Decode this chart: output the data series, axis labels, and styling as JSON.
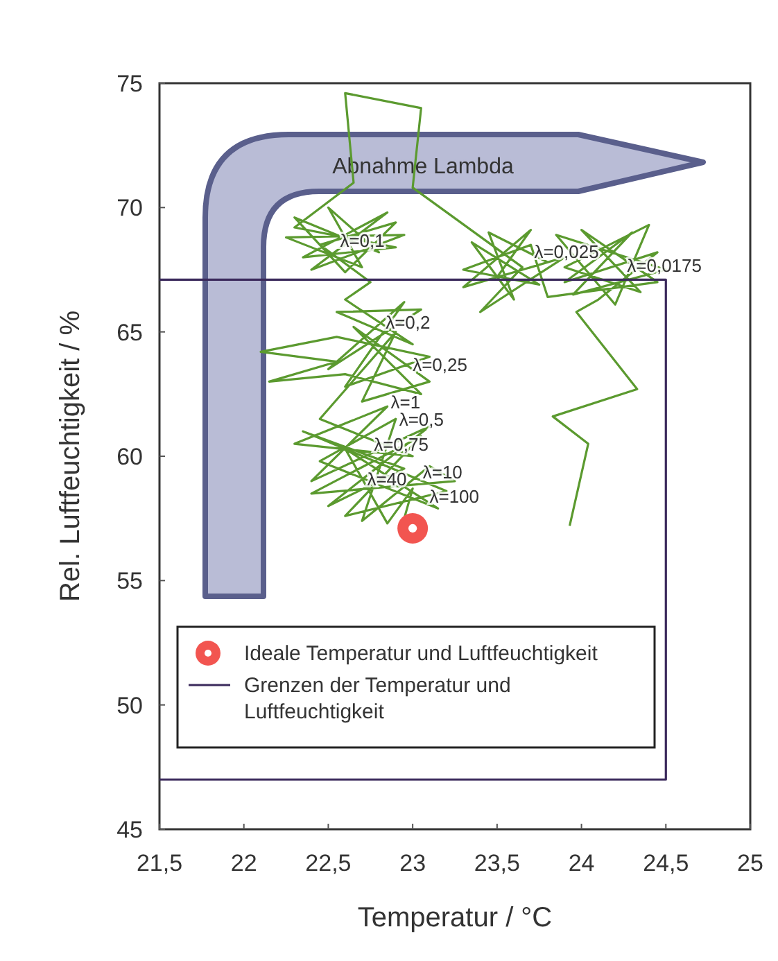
{
  "chart_data": {
    "type": "line",
    "xlabel": "Temperatur / °C",
    "ylabel": "Rel. Luftfeuchtigkeit / %",
    "xlim": [
      21.5,
      25
    ],
    "ylim": [
      45,
      75
    ],
    "xticks": [
      {
        "value": 21.5,
        "label": "21,5"
      },
      22,
      {
        "value": 22.5,
        "label": "22,5"
      },
      23,
      {
        "value": 23.5,
        "label": "23,5"
      },
      24,
      {
        "value": 24.5,
        "label": "24,5"
      },
      25
    ],
    "yticks": [
      45,
      50,
      55,
      60,
      65,
      70,
      75
    ],
    "grid": false,
    "legend": "bottom",
    "line_style": "solid",
    "marker": "none",
    "series": [
      {
        "color": "#5b9a2f",
        "x": [
          23.93,
          24.04,
          23.83,
          24.33,
          23.97,
          24.1,
          24.45,
          23.9,
          24.3,
          23.95,
          24.5,
          23.85,
          24.2,
          24.4,
          23.9,
          24.35,
          24.0,
          24.45,
          23.8,
          23.7,
          23.3,
          23.75,
          23.35,
          23.6,
          23.45,
          23.8,
          23.3,
          23.7,
          23.5,
          23.9,
          23.4,
          23.65,
          23.0,
          23.05,
          22.6,
          22.65,
          22.3,
          22.9,
          22.35,
          22.85,
          22.4,
          22.95,
          22.25,
          22.7,
          22.5,
          22.8,
          22.3,
          22.6,
          22.9,
          22.45,
          22.75,
          22.6,
          23.0,
          22.55,
          23.05,
          22.5,
          22.95,
          22.6,
          23.1,
          22.55,
          22.1,
          22.55,
          22.15,
          22.6,
          23.05,
          22.65,
          23.1,
          22.7,
          22.9,
          22.45,
          23.0,
          22.3,
          22.85,
          22.4,
          23.1,
          22.5,
          22.95,
          22.35,
          23.2,
          22.6,
          23.05,
          22.4,
          23.25,
          23.1,
          22.7,
          22.9,
          22.45,
          23.15,
          22.6,
          22.85,
          23.0,
          22.95
        ],
        "values": [
          57.2,
          60.5,
          61.6,
          62.7,
          65.8,
          66.3,
          68.2,
          67.0,
          69.0,
          66.5,
          67.5,
          68.9,
          66.1,
          69.3,
          67.6,
          66.6,
          69.1,
          67.0,
          66.4,
          68.5,
          67.5,
          66.9,
          68.6,
          66.3,
          69.0,
          67.8,
          66.8,
          69.1,
          67.2,
          68.0,
          65.8,
          67.6,
          70.8,
          74.0,
          74.6,
          71.0,
          69.2,
          68.4,
          68.0,
          69.8,
          67.5,
          68.9,
          68.8,
          67.6,
          70.0,
          68.2,
          69.6,
          67.4,
          69.4,
          68.5,
          67.0,
          66.3,
          64.5,
          65.8,
          65.9,
          63.5,
          66.2,
          62.8,
          64.0,
          64.8,
          64.2,
          63.8,
          63.0,
          63.3,
          62.5,
          65.2,
          63.0,
          62.2,
          65.0,
          61.5,
          60.0,
          60.5,
          62.0,
          59.0,
          61.2,
          58.0,
          59.5,
          61.0,
          58.6,
          57.6,
          60.8,
          58.5,
          59.0,
          59.6,
          57.4,
          61.5,
          59.8,
          57.9,
          60.3,
          57.3,
          58.7,
          57.5
        ]
      },
      {
        "type": "scatter",
        "name": "Ideale Temperatur und Luftfeuchtigkeit",
        "color": "#f25550",
        "marker": "circle",
        "x": [
          23.0
        ],
        "values": [
          57.1
        ]
      },
      {
        "type": "line",
        "name": "Grenzen der Temperatur und Luftfeuchtigkeit",
        "color": "#3b2a5c",
        "x": [
          21.5,
          24.5,
          24.5,
          21.5
        ],
        "values": [
          67.1,
          67.1,
          47.0,
          47.0
        ]
      }
    ],
    "annotations": [
      "Abnahme Lambda",
      {
        "text": "λ=0,1",
        "x": 22.57,
        "y": 68.7
      },
      {
        "text": "λ=0,025",
        "x": 23.72,
        "y": 68.25
      },
      {
        "text": "λ=0,0175",
        "x": 24.27,
        "y": 67.7
      },
      {
        "text": "λ=0,2",
        "x": 22.84,
        "y": 65.4
      },
      {
        "text": "λ=0,25",
        "x": 23.0,
        "y": 63.7
      },
      {
        "text": "λ=1",
        "x": 22.87,
        "y": 62.2
      },
      {
        "text": "λ=0,5",
        "x": 22.92,
        "y": 61.5
      },
      {
        "text": "λ=0,75",
        "x": 22.77,
        "y": 60.5
      },
      {
        "text": "λ=10",
        "x": 23.06,
        "y": 59.4
      },
      {
        "text": "λ=40",
        "x": 22.73,
        "y": 59.1
      },
      {
        "text": "λ=100",
        "x": 23.1,
        "y": 58.4
      }
    ]
  }
}
